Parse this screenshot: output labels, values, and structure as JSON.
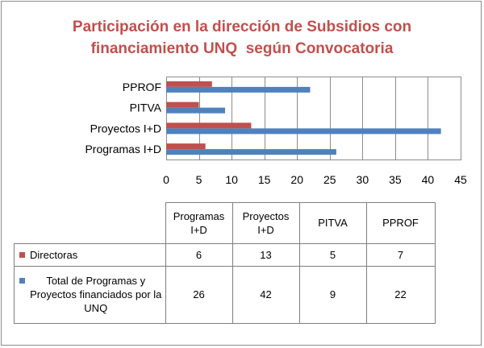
{
  "chart_data": {
    "type": "bar",
    "orientation": "horizontal",
    "title": "Participación en la dirección de Subsidios con financiamiento UNQ  según Convocatoria",
    "categories": [
      "Programas I+D",
      "Proyectos I+D",
      "PITVA",
      "PPROF"
    ],
    "series": [
      {
        "name": "Directoras",
        "color": "#c0504d",
        "values": [
          6,
          13,
          5,
          7
        ]
      },
      {
        "name": "Total de Programas y Proyectos financiados por la UNQ",
        "color": "#4f81bd",
        "values": [
          26,
          42,
          9,
          22
        ]
      }
    ],
    "xlim": [
      0,
      45
    ],
    "xticks": [
      0,
      5,
      10,
      15,
      20,
      25,
      30,
      35,
      40,
      45
    ],
    "xlabel": "",
    "ylabel": "",
    "grid": "vertical",
    "legend": "data-table-below"
  },
  "table": {
    "headers": [
      "Programas I+D",
      "Proyectos I+D",
      "PITVA",
      "PPROF"
    ],
    "rows": [
      {
        "label": "Directoras",
        "color": "#c0504d",
        "cells": [
          "6",
          "13",
          "5",
          "7"
        ]
      },
      {
        "label": "Total de Programas y Proyectos financiados por la UNQ",
        "color": "#4f81bd",
        "cells": [
          "26",
          "42",
          "9",
          "22"
        ]
      }
    ]
  }
}
